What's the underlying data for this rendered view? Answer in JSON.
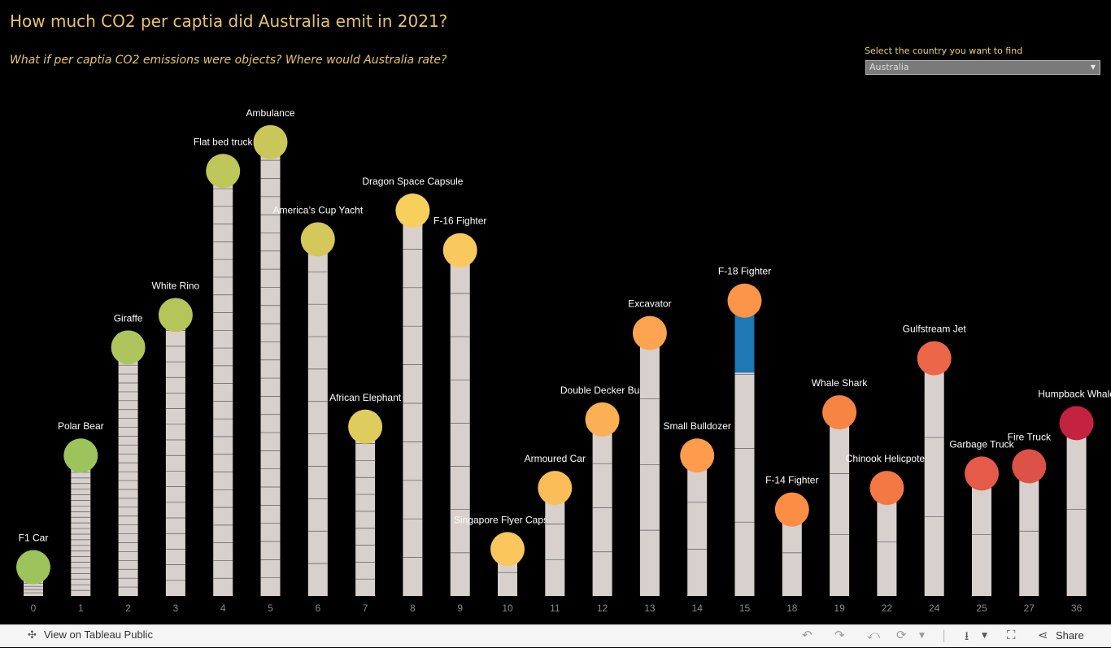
{
  "title": "How much CO2 per captia did Australia emit in 2021?",
  "subtitle": "What if per captia CO2 emissions were objects?  Where would Australia  rate?",
  "filter": {
    "label": "Select the country you want to find",
    "value": "Australia"
  },
  "footer": {
    "view_label": "View on Tableau Public",
    "share_label": "Share"
  },
  "chart_data": {
    "type": "lollipop",
    "title": "How much CO2 per captia did Australia emit in 2021?",
    "xlabel": "",
    "ylabel": "",
    "highlight_index": 15,
    "highlight_color": "#1f77b4",
    "stem_color": "#d8d0cd",
    "items": [
      {
        "tick": "0",
        "label": "F1 Car",
        "value": 0.8,
        "stripes": 8,
        "color": "#9cc35c"
      },
      {
        "tick": "1",
        "label": "Polar Bear",
        "value": 3.9,
        "stripes": 24,
        "color": "#9cc35c"
      },
      {
        "tick": "2",
        "label": "Giraffe",
        "value": 6.9,
        "stripes": 27,
        "color": "#adc55c"
      },
      {
        "tick": "3",
        "label": "White Rino",
        "value": 7.8,
        "stripes": 17,
        "color": "#b5c55a"
      },
      {
        "tick": "4",
        "label": "Flat bed truck",
        "value": 11.8,
        "stripes": 23,
        "color": "#bec85a"
      },
      {
        "tick": "5",
        "label": "Ambulance",
        "value": 12.6,
        "stripes": 24,
        "color": "#c9c75a"
      },
      {
        "tick": "6",
        "label": "America’s Cup Yacht",
        "value": 9.9,
        "stripes": 10,
        "color": "#d4c85a"
      },
      {
        "tick": "7",
        "label": "African Elephant",
        "value": 4.7,
        "stripes": 9,
        "color": "#decc5c"
      },
      {
        "tick": "8",
        "label": "Dragon Space Capsule",
        "value": 10.7,
        "stripes": 9,
        "color": "#f6cf5d"
      },
      {
        "tick": "9",
        "label": "F-16 Fighter",
        "value": 9.6,
        "stripes": 7,
        "color": "#f9c95e"
      },
      {
        "tick": "10",
        "label": "Singapore Flyer Capsule",
        "value": 1.3,
        "stripes": 1,
        "color": "#fbc65c"
      },
      {
        "tick": "11",
        "label": "Armoured Car",
        "value": 3.0,
        "stripes": 2,
        "color": "#fbbd58"
      },
      {
        "tick": "12",
        "label": "Double Decker Bus",
        "value": 4.9,
        "stripes": 3,
        "color": "#fbb153"
      },
      {
        "tick": "13",
        "label": "Excavator",
        "value": 7.3,
        "stripes": 3,
        "color": "#fca450"
      },
      {
        "tick": "14",
        "label": "Small Bulldozer",
        "value": 3.9,
        "stripes": 2,
        "color": "#fc9c4c"
      },
      {
        "tick": "15",
        "label": "F-18 Fighter",
        "value": 8.2,
        "stripes": 3,
        "color": "#fc9547",
        "fill_value": 6.2
      },
      {
        "tick": "18",
        "label": "F-14 Fighter",
        "value": 2.4,
        "stripes": 1,
        "color": "#fb8d45"
      },
      {
        "tick": "19",
        "label": "Whale Shark",
        "value": 5.1,
        "stripes": 2,
        "color": "#f88444"
      },
      {
        "tick": "22",
        "label": "Chinook Helicpoter",
        "value": 3.0,
        "stripes": 1,
        "color": "#f37844"
      },
      {
        "tick": "24",
        "label": "Gulfstream Jet",
        "value": 6.6,
        "stripes": 2,
        "color": "#ec6748"
      },
      {
        "tick": "25",
        "label": "Garbage Truck",
        "value": 3.4,
        "stripes": 1,
        "color": "#e55a48"
      },
      {
        "tick": "27",
        "label": "Fire Truck",
        "value": 3.6,
        "stripes": 1,
        "color": "#dd5246"
      },
      {
        "tick": "36",
        "label": "Humpback Whale",
        "value": 4.8,
        "stripes": 1,
        "color": "#c4233f"
      }
    ]
  }
}
